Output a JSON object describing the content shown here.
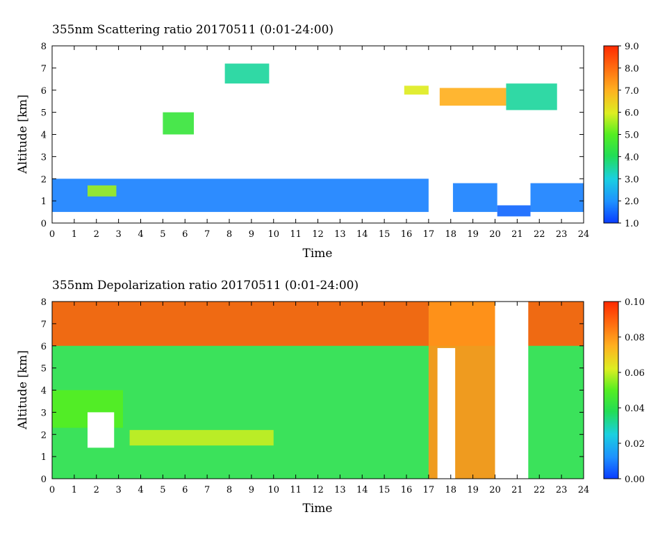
{
  "chart_data": [
    {
      "type": "heatmap",
      "title": "355nm Scattering ratio  20170511 (0:01-24:00)",
      "xlabel": "Time",
      "ylabel": "Altitude [km]",
      "xlim": [
        0,
        24
      ],
      "ylim": [
        0,
        8
      ],
      "x_ticks": [
        "0",
        "1",
        "2",
        "3",
        "4",
        "5",
        "6",
        "7",
        "8",
        "9",
        "10",
        "11",
        "12",
        "13",
        "14",
        "15",
        "16",
        "17",
        "18",
        "19",
        "20",
        "21",
        "22",
        "23",
        "24"
      ],
      "y_ticks": [
        "0",
        "1",
        "2",
        "3",
        "4",
        "5",
        "6",
        "7",
        "8"
      ],
      "colorbar": {
        "range": [
          1.0,
          9.0
        ],
        "labels": [
          "1.0",
          "2.0",
          "3.0",
          "4.0",
          "5.0",
          "6.0",
          "7.0",
          "8.0",
          "9.0"
        ]
      },
      "features": [
        {
          "t0": 0.0,
          "t1": 17.0,
          "alt0": 0.5,
          "alt1": 2.0,
          "value": 1.8
        },
        {
          "t0": 1.6,
          "t1": 2.9,
          "alt0": 1.2,
          "alt1": 1.7,
          "value": 5.5
        },
        {
          "t0": 5.0,
          "t1": 6.4,
          "alt0": 4.0,
          "alt1": 5.0,
          "value": 4.5
        },
        {
          "t0": 7.8,
          "t1": 9.8,
          "alt0": 6.3,
          "alt1": 7.2,
          "value": 3.5
        },
        {
          "t0": 18.1,
          "t1": 20.1,
          "alt0": 0.5,
          "alt1": 1.8,
          "value": 1.8
        },
        {
          "t0": 20.1,
          "t1": 21.6,
          "alt0": 0.3,
          "alt1": 0.8,
          "value": 1.5
        },
        {
          "t0": 21.6,
          "t1": 24.0,
          "alt0": 0.5,
          "alt1": 1.8,
          "value": 1.8
        },
        {
          "t0": 15.9,
          "t1": 17.0,
          "alt0": 5.8,
          "alt1": 6.2,
          "value": 6.0
        },
        {
          "t0": 17.5,
          "t1": 20.5,
          "alt0": 5.3,
          "alt1": 6.1,
          "value": 7.0
        },
        {
          "t0": 20.5,
          "t1": 22.8,
          "alt0": 5.1,
          "alt1": 6.3,
          "value": 3.5
        }
      ]
    },
    {
      "type": "heatmap",
      "title": "355nm Depolarization ratio  20170511 (0:01-24:00)",
      "xlabel": "Time",
      "ylabel": "Altitude [km]",
      "xlim": [
        0,
        24
      ],
      "ylim": [
        0,
        8
      ],
      "x_ticks": [
        "0",
        "1",
        "2",
        "3",
        "4",
        "5",
        "6",
        "7",
        "8",
        "9",
        "10",
        "11",
        "12",
        "13",
        "14",
        "15",
        "16",
        "17",
        "18",
        "19",
        "20",
        "21",
        "22",
        "23",
        "24"
      ],
      "y_ticks": [
        "0",
        "1",
        "2",
        "3",
        "4",
        "5",
        "6",
        "7",
        "8"
      ],
      "colorbar": {
        "range": [
          0.0,
          0.1
        ],
        "labels": [
          "0.00",
          "0.02",
          "0.04",
          "0.06",
          "0.08",
          "0.10"
        ]
      },
      "features": [
        {
          "t0": 0.0,
          "t1": 24.0,
          "alt0": 0.0,
          "alt1": 8.0,
          "value": 0.04
        },
        {
          "t0": 0.0,
          "t1": 24.0,
          "alt0": 6.0,
          "alt1": 8.0,
          "value": 0.09
        },
        {
          "t0": 3.5,
          "t1": 10.0,
          "alt0": 1.5,
          "alt1": 2.2,
          "value": 0.06
        },
        {
          "t0": 0.0,
          "t1": 3.2,
          "alt0": 2.3,
          "alt1": 4.0,
          "value": 0.05
        },
        {
          "t0": 17.0,
          "t1": 20.0,
          "alt0": 0.0,
          "alt1": 8.0,
          "value": 0.08
        }
      ],
      "gaps": [
        {
          "t0": 1.6,
          "t1": 2.8,
          "alt0": 1.4,
          "alt1": 3.0
        },
        {
          "t0": 17.4,
          "t1": 18.2,
          "alt0": 0.0,
          "alt1": 5.9
        },
        {
          "t0": 20.0,
          "t1": 21.5,
          "alt0": 0.0,
          "alt1": 8.0
        }
      ]
    }
  ]
}
